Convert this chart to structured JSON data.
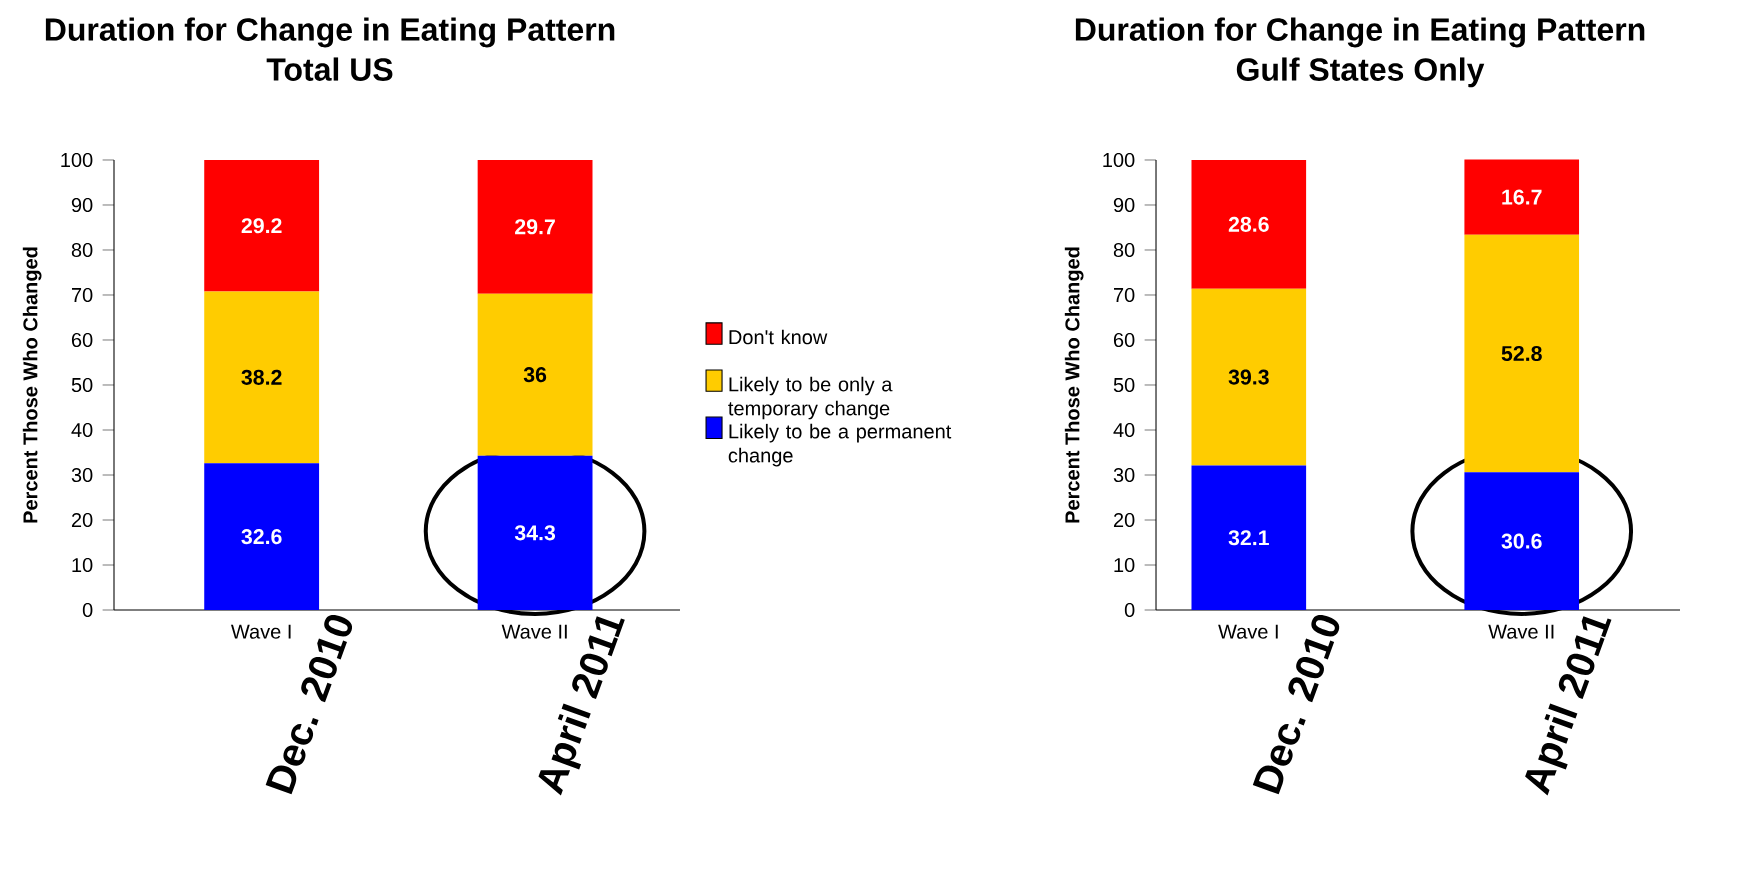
{
  "chart_data": [
    {
      "type": "bar",
      "stacked": true,
      "title": "Duration for Change in Eating Pattern",
      "subtitle": "Total US",
      "ylabel": "Percent Those Who Changed",
      "categories": [
        "Wave I",
        "Wave II"
      ],
      "ylim": [
        0,
        100
      ],
      "yticks": [
        0,
        10,
        20,
        30,
        40,
        50,
        60,
        70,
        80,
        90,
        100
      ],
      "data_labels": true,
      "legend": "right",
      "annotations": [
        "Dec. 2010",
        "April 2011"
      ],
      "series": [
        {
          "name": "Likely to be a permanent change",
          "color": "#0000ff",
          "values": [
            32.6,
            34.3
          ]
        },
        {
          "name": "Likely to be only a temporary change",
          "color": "#ffcc00",
          "values": [
            38.2,
            36
          ]
        },
        {
          "name": "Don't know",
          "color": "#ff0000",
          "values": [
            29.2,
            29.7
          ]
        }
      ]
    },
    {
      "type": "bar",
      "stacked": true,
      "title": "Duration for Change in Eating Pattern",
      "subtitle": "Gulf States Only",
      "ylabel": "Percent Those Who Changed",
      "categories": [
        "Wave I",
        "Wave II"
      ],
      "ylim": [
        0,
        100
      ],
      "yticks": [
        0,
        10,
        20,
        30,
        40,
        50,
        60,
        70,
        80,
        90,
        100
      ],
      "data_labels": true,
      "annotations": [
        "Dec. 2010",
        "April 2011"
      ],
      "series": [
        {
          "color": "#0000ff",
          "values": [
            32.1,
            30.6
          ]
        },
        {
          "color": "#ffcc00",
          "values": [
            39.3,
            52.8
          ]
        },
        {
          "color": "#ff0000",
          "values": [
            28.6,
            16.7
          ]
        }
      ]
    }
  ]
}
